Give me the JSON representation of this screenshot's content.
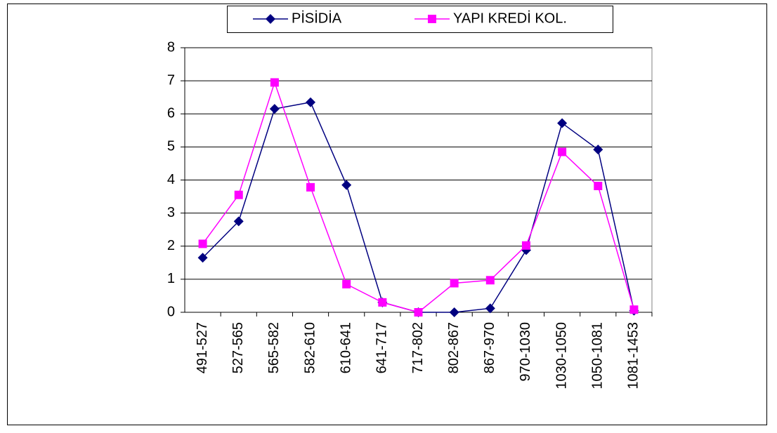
{
  "chart_data": {
    "type": "line",
    "categories": [
      "491-527",
      "527-565",
      "565-582",
      "582-610",
      "610-641",
      "641-717",
      "717-802",
      "802-867",
      "867-970",
      "970-1030",
      "1030-1050",
      "1050-1081",
      "1081-1453"
    ],
    "series": [
      {
        "name": "PİSİDİA",
        "color": "#000080",
        "marker": "diamond",
        "values": [
          1.65,
          2.75,
          6.15,
          6.35,
          3.85,
          0.3,
          0,
          0,
          0.12,
          1.88,
          5.72,
          4.92,
          0.05
        ]
      },
      {
        "name": "YAPI KREDİ KOL.",
        "color": "#ff00ff",
        "marker": "square",
        "values": [
          2.07,
          3.55,
          6.95,
          3.78,
          0.85,
          0.3,
          0,
          0.88,
          0.97,
          2.02,
          4.85,
          3.82,
          0.08
        ]
      }
    ],
    "ylim": [
      0,
      8
    ],
    "yticks": [
      0,
      1,
      2,
      3,
      4,
      5,
      6,
      7,
      8
    ],
    "grid": true,
    "legend": "top"
  }
}
